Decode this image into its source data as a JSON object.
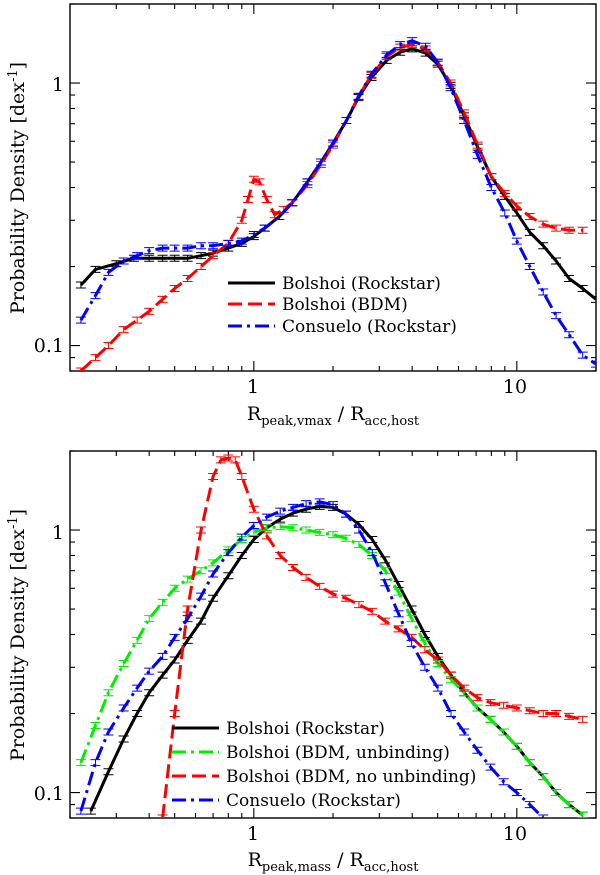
{
  "chart_data": [
    {
      "type": "line",
      "id": "top",
      "xscale": "log",
      "yscale": "log",
      "xlim": [
        0.2,
        20
      ],
      "ylim": [
        0.08,
        2.0
      ],
      "xtick_labels": [
        {
          "value": 1,
          "label": "1"
        },
        {
          "value": 10,
          "label": "10"
        }
      ],
      "ytick_labels": [
        {
          "value": 0.1,
          "label": "0.1"
        },
        {
          "value": 1,
          "label": "1"
        }
      ],
      "xlabel": {
        "main": "R",
        "sub1": "peak,vmax",
        "mid": " / R",
        "sub2": "acc,host"
      },
      "ylabel": {
        "main": "Probability Density [dex",
        "sup": "-1",
        "end": "]"
      },
      "legend_position": "lower-center",
      "series": [
        {
          "name": "Bolshoi (Rockstar)",
          "color": "#000000",
          "dash": "solid",
          "error_bars": true,
          "x": [
            0.22,
            0.25,
            0.3,
            0.35,
            0.4,
            0.45,
            0.5,
            0.56,
            0.63,
            0.7,
            0.8,
            0.9,
            1.0,
            1.1,
            1.25,
            1.4,
            1.6,
            1.8,
            2.0,
            2.25,
            2.5,
            2.8,
            3.2,
            3.6,
            4.0,
            4.5,
            5.0,
            5.6,
            6.3,
            7.1,
            8.0,
            9.0,
            10.0,
            11.2,
            12.6,
            14.1,
            15.8,
            17.8,
            20.0
          ],
          "y": [
            0.17,
            0.195,
            0.205,
            0.215,
            0.215,
            0.215,
            0.215,
            0.215,
            0.22,
            0.225,
            0.235,
            0.245,
            0.26,
            0.28,
            0.31,
            0.35,
            0.42,
            0.5,
            0.59,
            0.72,
            0.88,
            1.05,
            1.22,
            1.31,
            1.35,
            1.3,
            1.18,
            0.98,
            0.75,
            0.57,
            0.44,
            0.37,
            0.32,
            0.27,
            0.24,
            0.21,
            0.18,
            0.165,
            0.15
          ]
        },
        {
          "name": "Bolshoi (BDM)",
          "color": "#ff0000",
          "dash": "long-dash",
          "error_bars": true,
          "x": [
            0.22,
            0.25,
            0.28,
            0.32,
            0.36,
            0.4,
            0.45,
            0.5,
            0.56,
            0.63,
            0.7,
            0.8,
            0.9,
            0.95,
            1.0,
            1.05,
            1.12,
            1.2,
            1.3,
            1.4,
            1.6,
            1.8,
            2.0,
            2.25,
            2.5,
            2.8,
            3.2,
            3.6,
            4.0,
            4.5,
            5.0,
            5.6,
            6.3,
            7.1,
            8.0,
            9.0,
            10.0,
            11.2,
            12.6,
            14.1,
            15.8,
            17.8
          ],
          "y": [
            0.08,
            0.09,
            0.1,
            0.115,
            0.125,
            0.135,
            0.15,
            0.165,
            0.18,
            0.2,
            0.22,
            0.245,
            0.3,
            0.36,
            0.43,
            0.42,
            0.36,
            0.315,
            0.33,
            0.35,
            0.41,
            0.49,
            0.58,
            0.72,
            0.89,
            1.07,
            1.26,
            1.37,
            1.4,
            1.35,
            1.2,
            1.0,
            0.77,
            0.58,
            0.44,
            0.38,
            0.34,
            0.31,
            0.29,
            0.28,
            0.275,
            0.275
          ]
        },
        {
          "name": "Consuelo (Rockstar)",
          "color": "#0000ff",
          "dash": "dash-dot",
          "error_bars": true,
          "x": [
            0.22,
            0.25,
            0.28,
            0.32,
            0.36,
            0.4,
            0.45,
            0.5,
            0.56,
            0.63,
            0.7,
            0.8,
            0.9,
            1.0,
            1.1,
            1.25,
            1.4,
            1.6,
            1.8,
            2.0,
            2.25,
            2.5,
            2.8,
            3.2,
            3.6,
            4.0,
            4.5,
            5.0,
            5.6,
            6.3,
            7.1,
            8.0,
            9.0,
            10.0,
            11.2,
            12.6,
            14.1,
            15.8,
            17.8,
            20.0
          ],
          "y": [
            0.125,
            0.155,
            0.19,
            0.21,
            0.22,
            0.23,
            0.235,
            0.235,
            0.235,
            0.24,
            0.24,
            0.245,
            0.25,
            0.265,
            0.28,
            0.31,
            0.35,
            0.42,
            0.5,
            0.59,
            0.72,
            0.89,
            1.08,
            1.28,
            1.4,
            1.45,
            1.38,
            1.2,
            0.96,
            0.72,
            0.53,
            0.4,
            0.32,
            0.25,
            0.2,
            0.16,
            0.13,
            0.11,
            0.092,
            0.085
          ]
        }
      ]
    },
    {
      "type": "line",
      "id": "bottom",
      "xscale": "log",
      "yscale": "log",
      "xlim": [
        0.2,
        20
      ],
      "ylim": [
        0.08,
        2.0
      ],
      "xtick_labels": [
        {
          "value": 1,
          "label": "1"
        },
        {
          "value": 10,
          "label": "10"
        }
      ],
      "ytick_labels": [
        {
          "value": 0.1,
          "label": "0.1"
        },
        {
          "value": 1,
          "label": "1"
        }
      ],
      "xlabel": {
        "main": "R",
        "sub1": "peak,mass",
        "mid": " / R",
        "sub2": "acc,host"
      },
      "ylabel": {
        "main": "Probability Density [dex",
        "sup": "-1",
        "end": "]"
      },
      "legend_position": "lower-center",
      "series": [
        {
          "name": "Bolshoi (Rockstar)",
          "color": "#000000",
          "dash": "solid",
          "error_bars": true,
          "x": [
            0.24,
            0.28,
            0.32,
            0.36,
            0.4,
            0.45,
            0.5,
            0.56,
            0.63,
            0.7,
            0.8,
            0.9,
            1.0,
            1.12,
            1.26,
            1.41,
            1.58,
            1.78,
            2.0,
            2.24,
            2.51,
            2.82,
            3.16,
            3.55,
            3.98,
            4.47,
            5.01,
            5.62,
            6.31,
            7.08,
            7.94,
            8.91,
            10.0,
            11.2,
            12.6,
            14.1,
            15.8,
            17.8
          ],
          "y": [
            0.085,
            0.12,
            0.16,
            0.2,
            0.24,
            0.28,
            0.32,
            0.38,
            0.45,
            0.55,
            0.67,
            0.8,
            0.92,
            1.02,
            1.1,
            1.16,
            1.2,
            1.23,
            1.22,
            1.15,
            1.05,
            0.92,
            0.77,
            0.62,
            0.5,
            0.4,
            0.33,
            0.28,
            0.24,
            0.21,
            0.19,
            0.17,
            0.15,
            0.13,
            0.115,
            0.1,
            0.09,
            0.082
          ]
        },
        {
          "name": "Bolshoi (BDM, unbinding)",
          "color": "#00ee00",
          "dash": "dash-dot",
          "error_bars": true,
          "x": [
            0.22,
            0.25,
            0.28,
            0.32,
            0.36,
            0.4,
            0.45,
            0.5,
            0.56,
            0.63,
            0.7,
            0.8,
            0.9,
            1.0,
            1.12,
            1.26,
            1.41,
            1.58,
            1.78,
            2.0,
            2.24,
            2.51,
            2.82,
            3.16,
            3.55,
            3.98,
            4.47,
            5.01,
            5.62,
            6.31,
            7.08,
            7.94,
            8.91,
            10.0,
            11.2,
            12.6,
            14.1,
            15.8,
            17.8
          ],
          "y": [
            0.13,
            0.18,
            0.24,
            0.31,
            0.38,
            0.46,
            0.53,
            0.6,
            0.65,
            0.7,
            0.75,
            0.84,
            0.92,
            0.98,
            1.02,
            1.03,
            1.02,
            1.0,
            0.98,
            0.96,
            0.93,
            0.88,
            0.8,
            0.7,
            0.58,
            0.46,
            0.37,
            0.31,
            0.27,
            0.24,
            0.21,
            0.19,
            0.17,
            0.15,
            0.13,
            0.115,
            0.1,
            0.09,
            0.082
          ]
        },
        {
          "name": "Bolshoi (BDM, no unbinding)",
          "color": "#ff0000",
          "dash": "long-dash",
          "error_bars": true,
          "x": [
            0.45,
            0.5,
            0.56,
            0.63,
            0.7,
            0.75,
            0.8,
            0.85,
            0.9,
            1.0,
            1.12,
            1.26,
            1.41,
            1.58,
            1.78,
            2.0,
            2.24,
            2.51,
            2.82,
            3.16,
            3.55,
            3.98,
            4.47,
            5.01,
            5.62,
            6.31,
            7.08,
            7.94,
            8.91,
            10.0,
            11.2,
            12.6,
            14.1,
            15.8,
            17.8
          ],
          "y": [
            0.08,
            0.2,
            0.5,
            1.0,
            1.6,
            1.85,
            1.88,
            1.85,
            1.6,
            1.2,
            0.95,
            0.8,
            0.72,
            0.66,
            0.61,
            0.57,
            0.55,
            0.52,
            0.49,
            0.45,
            0.42,
            0.39,
            0.35,
            0.32,
            0.28,
            0.25,
            0.23,
            0.22,
            0.215,
            0.21,
            0.205,
            0.2,
            0.2,
            0.195,
            0.19
          ]
        },
        {
          "name": "Consuelo (Rockstar)",
          "color": "#0000ff",
          "dash": "dash-dot",
          "error_bars": true,
          "x": [
            0.22,
            0.25,
            0.28,
            0.32,
            0.36,
            0.4,
            0.45,
            0.5,
            0.56,
            0.63,
            0.7,
            0.8,
            0.9,
            1.0,
            1.12,
            1.26,
            1.41,
            1.58,
            1.78,
            2.0,
            2.24,
            2.51,
            2.82,
            3.16,
            3.55,
            3.98,
            4.47,
            5.01,
            5.62,
            6.31,
            7.08,
            7.94,
            8.91,
            10.0,
            11.2,
            12.6
          ],
          "y": [
            0.085,
            0.13,
            0.17,
            0.21,
            0.25,
            0.29,
            0.33,
            0.39,
            0.46,
            0.56,
            0.68,
            0.82,
            0.94,
            1.04,
            1.12,
            1.18,
            1.22,
            1.26,
            1.28,
            1.25,
            1.15,
            1.0,
            0.82,
            0.63,
            0.48,
            0.37,
            0.3,
            0.25,
            0.2,
            0.17,
            0.145,
            0.125,
            0.11,
            0.1,
            0.09,
            0.08
          ]
        }
      ]
    }
  ]
}
